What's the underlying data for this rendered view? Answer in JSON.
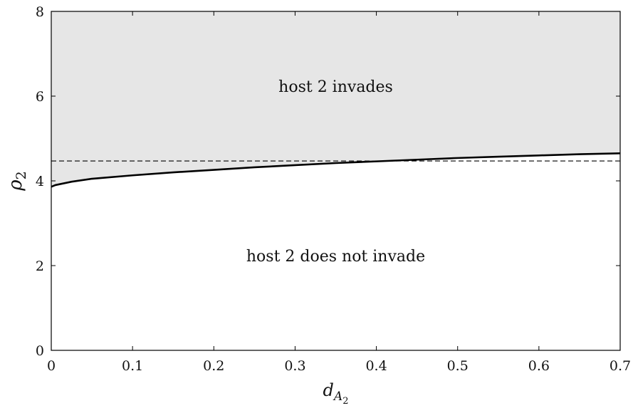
{
  "chart_data": {
    "type": "line",
    "xlabel": {
      "base": "d",
      "sub": "A",
      "subsub": "2"
    },
    "ylabel": {
      "base": "ρ",
      "sub": "2"
    },
    "xlim": [
      0,
      0.7
    ],
    "ylim": [
      0,
      8
    ],
    "xticks": [
      "0",
      "0.1",
      "0.2",
      "0.3",
      "0.4",
      "0.5",
      "0.6",
      "0.7"
    ],
    "yticks": [
      "0",
      "2",
      "4",
      "6",
      "8"
    ],
    "grid": false,
    "legend": "none",
    "fill_color": "#e6e6e6",
    "series": [
      {
        "style": "solid",
        "color": "#000000",
        "x": [
          0,
          0.005,
          0.025,
          0.05,
          0.1,
          0.15,
          0.2,
          0.25,
          0.3,
          0.35,
          0.4,
          0.45,
          0.5,
          0.55,
          0.6,
          0.65,
          0.7
        ],
        "y": [
          3.86,
          3.9,
          3.98,
          4.05,
          4.13,
          4.2,
          4.26,
          4.32,
          4.37,
          4.42,
          4.46,
          4.5,
          4.54,
          4.57,
          4.6,
          4.63,
          4.65
        ]
      },
      {
        "style": "dashed",
        "color": "#000000",
        "x": [
          0,
          0.7
        ],
        "y": [
          4.47,
          4.47
        ]
      }
    ],
    "annotations": [
      {
        "text": "host 2 invades",
        "x": 0.35,
        "y": 6.1
      },
      {
        "text": "host 2 does not invade",
        "x": 0.35,
        "y": 2.1
      }
    ]
  }
}
